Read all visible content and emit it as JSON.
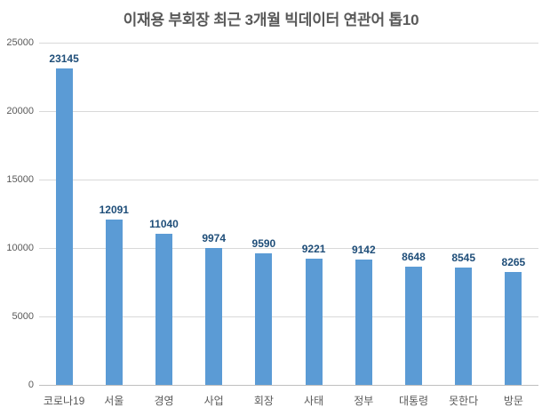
{
  "title": "이재용 부회장 최근 3개월 빅데이터 연관어 톱10",
  "colors": {
    "bar": "#5B9BD5",
    "data_label": "#1F4E79",
    "axis_text": "#595959",
    "title_text": "#595959",
    "gridline": "#D9D9D9",
    "axis_line": "#BFBFBF",
    "background": "#FFFFFF"
  },
  "chart_data": {
    "type": "bar",
    "title": "이재용 부회장 최근 3개월 빅데이터 연관어 톱10",
    "categories": [
      "코로나19",
      "서울",
      "경영",
      "사업",
      "회장",
      "사태",
      "정부",
      "대통령",
      "못한다",
      "방문"
    ],
    "values": [
      23145,
      12091,
      11040,
      9974,
      9590,
      9221,
      9142,
      8648,
      8545,
      8265
    ],
    "data_labels": [
      23145,
      12091,
      11040,
      9974,
      9590,
      9221,
      9142,
      8648,
      8545,
      8265
    ],
    "xlabel": "",
    "ylabel": "",
    "ylim": [
      0,
      25000
    ],
    "yticks": [
      0,
      5000,
      10000,
      15000,
      20000,
      25000
    ],
    "grid": "horizontal-only",
    "legend": "none"
  }
}
